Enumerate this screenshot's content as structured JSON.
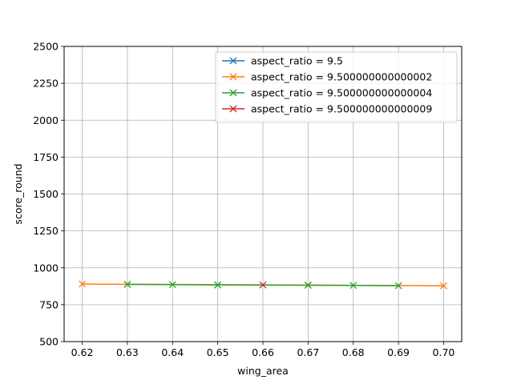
{
  "chart_data": {
    "type": "line",
    "title": "",
    "xlabel": "wing_area",
    "ylabel": "score_round",
    "xlim": [
      0.616,
      0.704
    ],
    "ylim": [
      500,
      2500
    ],
    "xticks": [
      0.62,
      0.63,
      0.64,
      0.65,
      0.66,
      0.67,
      0.68,
      0.69,
      0.7
    ],
    "xtick_labels": [
      "0.62",
      "0.63",
      "0.64",
      "0.65",
      "0.66",
      "0.67",
      "0.68",
      "0.69",
      "0.70"
    ],
    "yticks": [
      500,
      750,
      1000,
      1250,
      1500,
      1750,
      2000,
      2250,
      2500
    ],
    "ytick_labels": [
      "500",
      "750",
      "1000",
      "1250",
      "1500",
      "1750",
      "2000",
      "2250",
      "2500"
    ],
    "grid": true,
    "legend_position": "top-right",
    "marker": "x",
    "series": [
      {
        "name": "aspect_ratio = 9.5",
        "color": "#1f77b4",
        "points": [
          [
            0.65,
            884
          ]
        ]
      },
      {
        "name": "aspect_ratio = 9.500000000000002",
        "color": "#ff7f0e",
        "points": [
          [
            0.62,
            890
          ],
          [
            0.63,
            888
          ],
          [
            0.67,
            883
          ],
          [
            0.7,
            878
          ]
        ]
      },
      {
        "name": "aspect_ratio = 9.500000000000004",
        "color": "#2ca02c",
        "points": [
          [
            0.63,
            888
          ],
          [
            0.64,
            886
          ],
          [
            0.65,
            884
          ],
          [
            0.67,
            882
          ],
          [
            0.68,
            881
          ],
          [
            0.69,
            879
          ]
        ]
      },
      {
        "name": "aspect_ratio = 9.500000000000009",
        "color": "#d62728",
        "points": [
          [
            0.66,
            884
          ]
        ]
      }
    ]
  }
}
